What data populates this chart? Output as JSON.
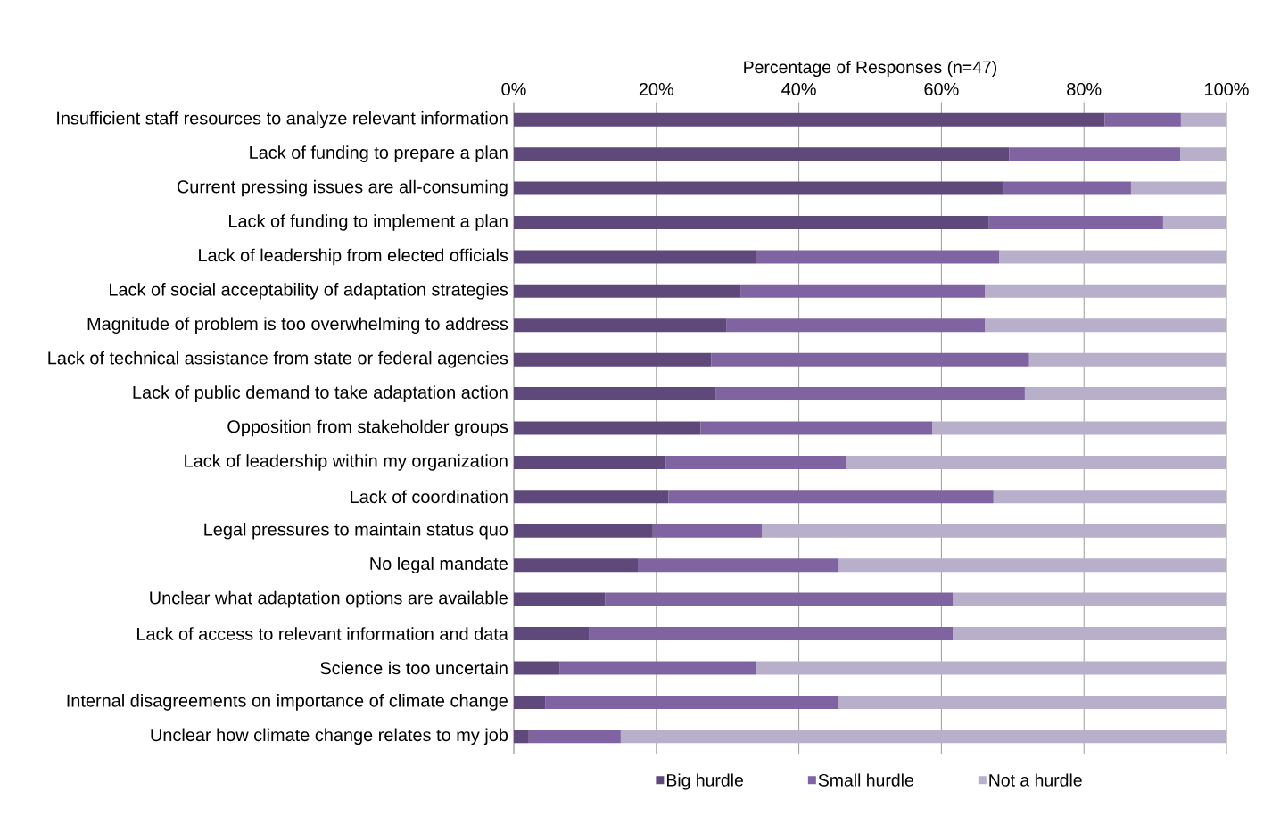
{
  "chart_data": {
    "type": "bar",
    "orientation": "horizontal",
    "stacked": true,
    "xlabel": "Percentage of Responses (n=47)",
    "categories": [
      "Insufficient staff resources to analyze relevant information",
      "Lack of funding to prepare a plan",
      "Current pressing issues are all-consuming",
      "Lack of funding to implement a plan",
      "Lack of leadership from elected officials",
      "Lack of social acceptability of adaptation strategies",
      "Magnitude of problem is too overwhelming to address",
      "Lack of technical assistance from state or federal agencies",
      "Lack of public demand to take adaptation action",
      "Opposition from stakeholder groups",
      "Lack of leadership within my organization",
      "Lack of coordination",
      "Legal pressures to maintain status quo",
      "No legal mandate",
      "Unclear what adaptation options are available",
      "Lack of access to relevant information and data",
      "Science is too uncertain",
      "Internal disagreements on importance of climate change",
      "Unclear how climate change relates to my job"
    ],
    "series": [
      {
        "name": "Big hurdle",
        "color": "#5f497a",
        "values": [
          82.9,
          69.5,
          68.8,
          66.6,
          34.0,
          31.8,
          29.8,
          27.7,
          28.3,
          26.2,
          21.3,
          21.7,
          19.5,
          17.4,
          12.8,
          10.6,
          6.4,
          4.4,
          2.1
        ]
      },
      {
        "name": "Small hurdle",
        "color": "#8064a2",
        "values": [
          10.7,
          24.0,
          17.8,
          24.5,
          34.1,
          34.3,
          36.3,
          44.6,
          43.4,
          32.5,
          25.4,
          45.6,
          15.3,
          28.2,
          48.8,
          51.0,
          27.6,
          41.2,
          12.9
        ]
      },
      {
        "name": "Not a hurdle",
        "color": "#b8afcb",
        "values": [
          6.4,
          6.5,
          13.4,
          8.9,
          31.9,
          33.9,
          33.9,
          27.7,
          28.3,
          41.3,
          53.3,
          32.7,
          65.2,
          54.4,
          38.4,
          38.4,
          66.0,
          54.4,
          85.0
        ]
      }
    ],
    "xlim": [
      0,
      100
    ],
    "xticks": [
      {
        "value": 0,
        "label": "0%"
      },
      {
        "value": 20,
        "label": "20%"
      },
      {
        "value": 40,
        "label": "40%"
      },
      {
        "value": 60,
        "label": "60%"
      },
      {
        "value": 80,
        "label": "80%"
      },
      {
        "value": 100,
        "label": "100%"
      }
    ],
    "grid": "x",
    "legend": "bottom"
  }
}
